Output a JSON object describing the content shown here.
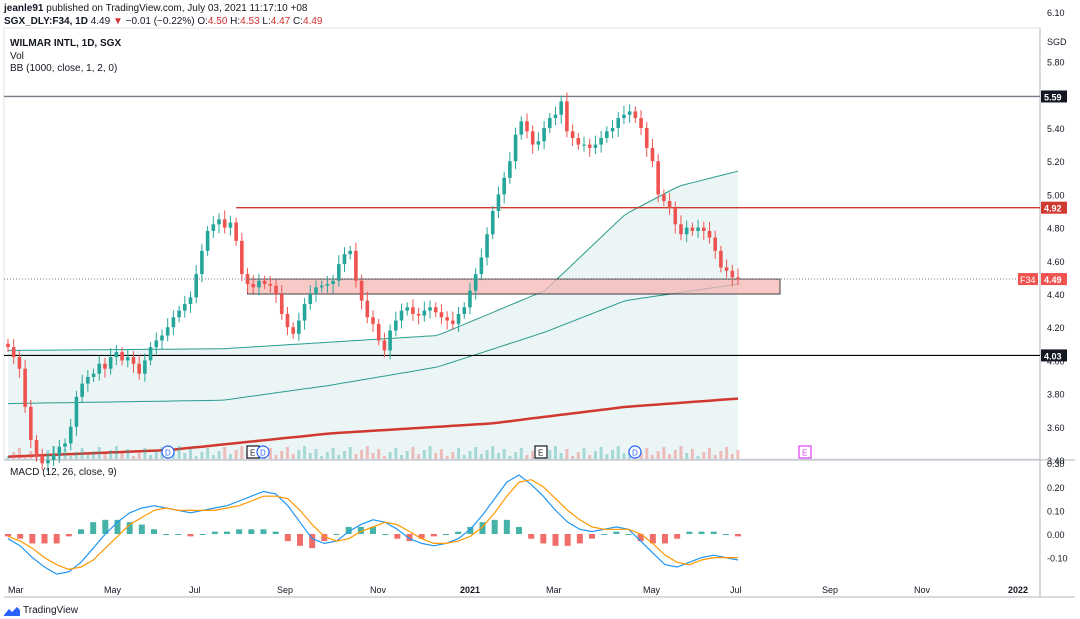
{
  "header": {
    "publisher": "jeanle91",
    "published_text": "published on TradingView.com, July 03, 2021 11:17:10 +08",
    "symbol_line": "SGX_DLY:F34, 1D",
    "last": "4.49",
    "change": "−0.01 (−0.22%)",
    "o_label": "O:",
    "o_val": "4.50",
    "h_label": "H:",
    "h_val": "4.53",
    "l_label": "L:",
    "l_val": "4.47",
    "c_label": "C:",
    "c_val": "4.49"
  },
  "legend": {
    "title": "WILMAR INTL, 1D, SGX",
    "vol": "Vol",
    "bb": "BB (1000, close, 1, 2, 0)",
    "macd": "MACD (12, 26, close, 9)"
  },
  "footer": {
    "brand": "TradingView"
  },
  "colors": {
    "up": "#26a69a",
    "down": "#ef5350",
    "bb_line": "#2a9d8f",
    "bb_fill": "#e6f3f2",
    "ma_red": "#d0392f",
    "resistance": "#d0392f",
    "support": "#000000",
    "zone_fill": "#f6b7b5",
    "macd_line": "#2196f3",
    "signal_line": "#ff9800",
    "hist_up": "#26a69a",
    "hist_down": "#ef5350"
  },
  "chart_data": {
    "type": "candlestick",
    "price_axis": {
      "currency": "SGD",
      "ticks": [
        3.4,
        3.6,
        3.8,
        4.0,
        4.2,
        4.4,
        4.6,
        4.8,
        5.0,
        5.2,
        5.4,
        5.8,
        6.1
      ],
      "range": [
        3.4,
        6.15
      ]
    },
    "time_axis": {
      "ticks": [
        "Mar",
        "May",
        "Jul",
        "Sep",
        "Nov",
        "2021",
        "Mar",
        "May",
        "Jul",
        "Sep",
        "Nov",
        "2022"
      ]
    },
    "price_labels": {
      "level_559": "5.59",
      "level_492": "4.92",
      "symbol": "F34",
      "last": "4.49",
      "level_403": "4.03"
    },
    "horizontal_lines": [
      {
        "name": "top",
        "value": 5.59,
        "color": "grey"
      },
      {
        "name": "resistance",
        "value": 4.92,
        "color": "red"
      },
      {
        "name": "support",
        "value": 4.03,
        "color": "black"
      }
    ],
    "zone": {
      "low": 4.4,
      "high": 4.49
    },
    "close_series": [
      4.08,
      4.02,
      3.95,
      3.72,
      3.52,
      3.42,
      3.38,
      3.4,
      3.43,
      3.48,
      3.5,
      3.6,
      3.78,
      3.86,
      3.9,
      3.92,
      3.98,
      3.95,
      4.02,
      4.05,
      4.0,
      4.02,
      3.98,
      3.92,
      4.0,
      4.08,
      4.12,
      4.15,
      4.2,
      4.26,
      4.3,
      4.34,
      4.38,
      4.52,
      4.66,
      4.78,
      4.82,
      4.85,
      4.8,
      4.83,
      4.72,
      4.52,
      4.46,
      4.44,
      4.48,
      4.46,
      4.45,
      4.4,
      4.28,
      4.2,
      4.16,
      4.24,
      4.34,
      4.4,
      4.44,
      4.45,
      4.46,
      4.48,
      4.58,
      4.64,
      4.66,
      4.48,
      4.36,
      4.26,
      4.22,
      4.12,
      4.06,
      4.18,
      4.24,
      4.3,
      4.32,
      4.28,
      4.27,
      4.3,
      4.32,
      4.29,
      4.26,
      4.24,
      4.22,
      4.28,
      4.32,
      4.42,
      4.52,
      4.62,
      4.76,
      4.9,
      5.0,
      5.1,
      5.2,
      5.36,
      5.44,
      5.38,
      5.3,
      5.32,
      5.4,
      5.46,
      5.48,
      5.56,
      5.38,
      5.34,
      5.3,
      5.3,
      5.28,
      5.3,
      5.34,
      5.38,
      5.4,
      5.46,
      5.48,
      5.5,
      5.46,
      5.4,
      5.28,
      5.2,
      5.0,
      4.96,
      4.92,
      4.82,
      4.76,
      4.8,
      4.78,
      4.8,
      4.78,
      4.74,
      4.66,
      4.56,
      4.54,
      4.5,
      4.49
    ],
    "bb_upper": [
      [
        0,
        4.06
      ],
      [
        40,
        4.07
      ],
      [
        80,
        4.15
      ],
      [
        100,
        4.42
      ],
      [
        115,
        4.88
      ],
      [
        125,
        5.05
      ],
      [
        136,
        5.14
      ]
    ],
    "bb_mid": [
      [
        0,
        3.74
      ],
      [
        40,
        3.76
      ],
      [
        60,
        3.85
      ],
      [
        80,
        3.96
      ],
      [
        100,
        4.17
      ],
      [
        115,
        4.36
      ],
      [
        136,
        4.46
      ]
    ],
    "red_ma": [
      [
        0,
        3.42
      ],
      [
        30,
        3.46
      ],
      [
        60,
        3.56
      ],
      [
        90,
        3.62
      ],
      [
        115,
        3.72
      ],
      [
        136,
        3.77
      ]
    ],
    "macd_axis": {
      "ticks": [
        "0.30",
        "0.20",
        "0.10",
        "0.00",
        "-0.10"
      ],
      "range": [
        -0.18,
        0.3
      ]
    },
    "macd_series": {
      "macd": [
        -0.02,
        -0.05,
        -0.1,
        -0.14,
        -0.17,
        -0.16,
        -0.12,
        -0.06,
        0.0,
        0.05,
        0.09,
        0.11,
        0.12,
        0.11,
        0.1,
        0.09,
        0.1,
        0.11,
        0.12,
        0.14,
        0.16,
        0.18,
        0.17,
        0.12,
        0.05,
        -0.02,
        -0.04,
        -0.03,
        0.01,
        0.04,
        0.06,
        0.05,
        0.02,
        -0.02,
        -0.04,
        -0.05,
        -0.04,
        -0.02,
        0.02,
        0.08,
        0.15,
        0.22,
        0.25,
        0.21,
        0.16,
        0.1,
        0.05,
        0.02,
        0.01,
        0.02,
        0.03,
        0.02,
        -0.03,
        -0.08,
        -0.13,
        -0.14,
        -0.12,
        -0.1,
        -0.09,
        -0.1,
        -0.11
      ],
      "signal": [
        -0.01,
        -0.03,
        -0.06,
        -0.1,
        -0.13,
        -0.15,
        -0.14,
        -0.11,
        -0.06,
        -0.01,
        0.04,
        0.07,
        0.1,
        0.11,
        0.1,
        0.1,
        0.1,
        0.1,
        0.11,
        0.12,
        0.14,
        0.16,
        0.16,
        0.15,
        0.1,
        0.04,
        -0.01,
        -0.03,
        -0.02,
        0.01,
        0.03,
        0.05,
        0.04,
        0.01,
        -0.02,
        -0.04,
        -0.04,
        -0.03,
        -0.01,
        0.03,
        0.09,
        0.16,
        0.22,
        0.23,
        0.2,
        0.15,
        0.1,
        0.06,
        0.03,
        0.02,
        0.02,
        0.02,
        0.0,
        -0.04,
        -0.09,
        -0.12,
        -0.13,
        -0.11,
        -0.1,
        -0.1,
        -0.1
      ]
    }
  }
}
